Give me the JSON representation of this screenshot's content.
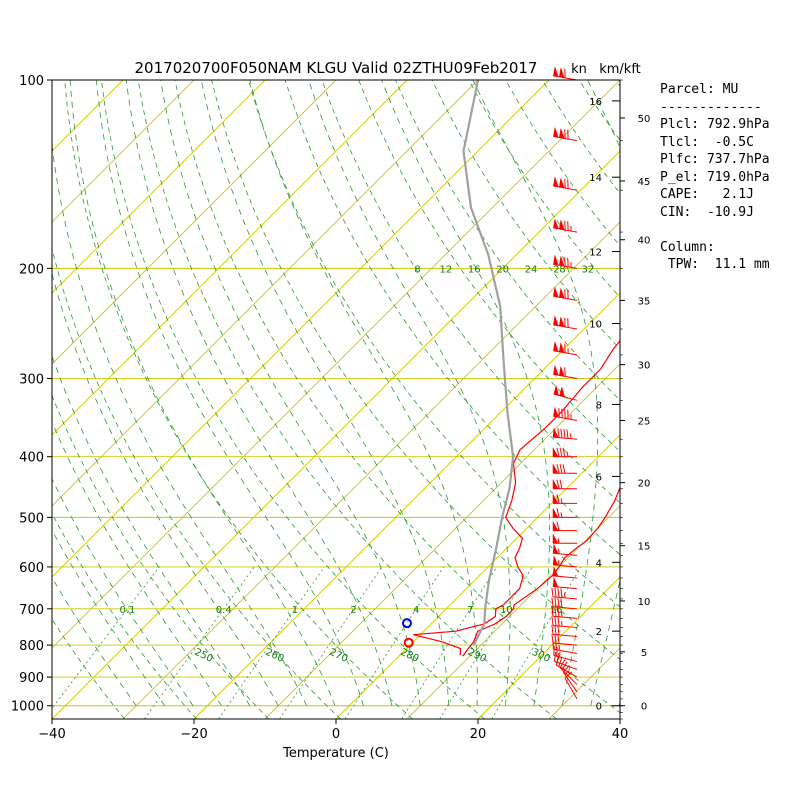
{
  "chart_data": {
    "type": "skew-t",
    "title": "2017020700F050NAM KLGU Valid 02ZTHU09Feb2017",
    "xlabel": "Temperature (C)",
    "xlim": [
      -40,
      40
    ],
    "x_ticks": [
      "−40",
      "−20",
      "0",
      "20",
      "40"
    ],
    "x_tick_values": [
      -40,
      -20,
      0,
      20,
      40
    ],
    "ylim_hpa": [
      1050,
      100
    ],
    "pressure_ticks": [
      100,
      200,
      300,
      400,
      500,
      600,
      700,
      800,
      900,
      1000
    ],
    "wind_units": "kn",
    "height_units": "km/kft",
    "km_ticks": [
      0,
      2,
      4,
      6,
      8,
      10,
      12,
      14,
      16
    ],
    "kft_ticks": [
      0,
      5,
      10,
      15,
      20,
      25,
      30,
      35,
      40,
      45,
      50
    ],
    "km_pressure": [
      {
        "v": 0,
        "p": 1000
      },
      {
        "v": 2,
        "p": 760
      },
      {
        "v": 4,
        "p": 590
      },
      {
        "v": 6,
        "p": 430
      },
      {
        "v": 8,
        "p": 330
      },
      {
        "v": 10,
        "p": 245
      },
      {
        "v": 12,
        "p": 188
      },
      {
        "v": 14,
        "p": 143
      },
      {
        "v": 16,
        "p": 108
      }
    ],
    "kft_pressure": [
      {
        "v": 0,
        "p": 1000
      },
      {
        "v": 5,
        "p": 820
      },
      {
        "v": 10,
        "p": 680
      },
      {
        "v": 15,
        "p": 555
      },
      {
        "v": 20,
        "p": 440
      },
      {
        "v": 25,
        "p": 350
      },
      {
        "v": 30,
        "p": 285
      },
      {
        "v": 35,
        "p": 225
      },
      {
        "v": 40,
        "p": 180
      },
      {
        "v": 45,
        "p": 145
      },
      {
        "v": 50,
        "p": 115
      }
    ],
    "mixing_ratio_labels": [
      "0.1",
      "0.4",
      "1",
      "2",
      "4",
      "7",
      "10",
      "16"
    ],
    "mixing_ratio_values": [
      0.1,
      0.4,
      1,
      2,
      4,
      7,
      10,
      16
    ],
    "mixing_ratio_label_pressure": 700,
    "temperature_labels_200": [
      "8",
      "12",
      "16",
      "20",
      "24",
      "28",
      "32"
    ],
    "temperature_labels_200_values": [
      8,
      12,
      16,
      20,
      24,
      28,
      32
    ],
    "theta_labels": [
      "250",
      "260",
      "270",
      "280",
      "290",
      "300"
    ],
    "theta_label_positions": [
      {
        "t": -28.5,
        "p": 815,
        "v": "250"
      },
      {
        "t": -18.5,
        "p": 815,
        "v": "260"
      },
      {
        "t": -9.5,
        "p": 815,
        "v": "270"
      },
      {
        "t": 0.5,
        "p": 815,
        "v": "280"
      },
      {
        "t": 10,
        "p": 815,
        "v": "290"
      },
      {
        "t": 19,
        "p": 815,
        "v": "300"
      }
    ],
    "series": [
      {
        "kind": "temperature",
        "color": "#ff0000",
        "points": [
          [
            9,
            833
          ],
          [
            8.7,
            810
          ],
          [
            8.5,
            790
          ],
          [
            7.6,
            760
          ],
          [
            9,
            740
          ],
          [
            9.5,
            720
          ],
          [
            9.5,
            700
          ],
          [
            9,
            690
          ],
          [
            10,
            650
          ],
          [
            10.3,
            620
          ],
          [
            10,
            600
          ],
          [
            9.5,
            580
          ],
          [
            9.8,
            560
          ],
          [
            10.2,
            545
          ],
          [
            10,
            520
          ],
          [
            9.5,
            500
          ],
          [
            8.5,
            470
          ],
          [
            7,
            440
          ],
          [
            5,
            400
          ],
          [
            3,
            360
          ],
          [
            1,
            320
          ],
          [
            -1.2,
            285
          ],
          [
            -3.5,
            260
          ],
          [
            -4.8,
            240
          ],
          [
            -5.6,
            220
          ],
          [
            -6.2,
            200
          ],
          [
            -6.3,
            180
          ],
          [
            -5.6,
            165
          ],
          [
            -4,
            150
          ],
          [
            -1.5,
            135
          ],
          [
            0.5,
            125
          ],
          [
            2,
            120
          ],
          [
            7,
            110
          ],
          [
            10,
            102
          ]
        ]
      },
      {
        "kind": "dewpoint",
        "color": "#ff0000",
        "points": [
          [
            8.5,
            830
          ],
          [
            7.6,
            810
          ],
          [
            4,
            790
          ],
          [
            -1,
            770
          ],
          [
            4.5,
            760
          ],
          [
            7.5,
            740
          ],
          [
            8,
            720
          ],
          [
            7,
            700
          ],
          [
            7.5,
            690
          ],
          [
            7.5,
            650
          ],
          [
            6.2,
            620
          ],
          [
            4.2,
            600
          ],
          [
            2.5,
            580
          ],
          [
            1.8,
            560
          ],
          [
            0.8,
            540
          ],
          [
            -2,
            520
          ],
          [
            -4.5,
            500
          ],
          [
            -6,
            470
          ],
          [
            -8,
            440
          ],
          [
            -11,
            410
          ],
          [
            -12,
            390
          ],
          [
            -11.5,
            360
          ],
          [
            -11.5,
            340
          ],
          [
            -12,
            310
          ],
          [
            -12,
            290
          ],
          [
            -13,
            270
          ],
          [
            -13.6,
            250
          ],
          [
            -14,
            235
          ],
          [
            -13.5,
            220
          ],
          [
            -12.5,
            200
          ],
          [
            -11.5,
            180
          ],
          [
            -11,
            165
          ],
          [
            -11.5,
            155
          ],
          [
            -10,
            147
          ],
          [
            -13,
            120
          ],
          [
            -15,
            100
          ]
        ]
      },
      {
        "kind": "parcel",
        "color": "#a0a0a0",
        "points": [
          [
            9,
            800
          ],
          [
            7.5,
            740
          ],
          [
            6.5,
            720
          ],
          [
            5,
            690
          ],
          [
            2,
            630
          ],
          [
            -1.5,
            560
          ],
          [
            -5,
            500
          ],
          [
            -8,
            450
          ],
          [
            -12,
            400
          ],
          [
            -19,
            340
          ],
          [
            -27,
            280
          ],
          [
            -35,
            230
          ],
          [
            -44,
            190
          ],
          [
            -53,
            160
          ],
          [
            -62,
            130
          ],
          [
            -70,
            100
          ]
        ]
      }
    ],
    "lcl_point": {
      "t": -0.5,
      "p": 793
    },
    "lfc_point": {
      "t": -3.5,
      "p": 738
    },
    "wind_barbs": [
      {
        "p": 975,
        "kn": 10,
        "dir": 330
      },
      {
        "p": 950,
        "kn": 15,
        "dir": 325
      },
      {
        "p": 925,
        "kn": 20,
        "dir": 315
      },
      {
        "p": 900,
        "kn": 20,
        "dir": 300
      },
      {
        "p": 875,
        "kn": 20,
        "dir": 290
      },
      {
        "p": 850,
        "kn": 25,
        "dir": 285
      },
      {
        "p": 825,
        "kn": 25,
        "dir": 280
      },
      {
        "p": 800,
        "kn": 30,
        "dir": 275
      },
      {
        "p": 775,
        "kn": 30,
        "dir": 275
      },
      {
        "p": 750,
        "kn": 35,
        "dir": 275
      },
      {
        "p": 725,
        "kn": 35,
        "dir": 275
      },
      {
        "p": 700,
        "kn": 40,
        "dir": 275
      },
      {
        "p": 675,
        "kn": 45,
        "dir": 275
      },
      {
        "p": 650,
        "kn": 50,
        "dir": 275
      },
      {
        "p": 625,
        "kn": 50,
        "dir": 275
      },
      {
        "p": 600,
        "kn": 55,
        "dir": 275
      },
      {
        "p": 575,
        "kn": 55,
        "dir": 275
      },
      {
        "p": 550,
        "kn": 55,
        "dir": 270
      },
      {
        "p": 525,
        "kn": 60,
        "dir": 270
      },
      {
        "p": 500,
        "kn": 65,
        "dir": 270
      },
      {
        "p": 475,
        "kn": 65,
        "dir": 270
      },
      {
        "p": 450,
        "kn": 70,
        "dir": 270
      },
      {
        "p": 425,
        "kn": 80,
        "dir": 270
      },
      {
        "p": 400,
        "kn": 85,
        "dir": 270
      },
      {
        "p": 375,
        "kn": 95,
        "dir": 275
      },
      {
        "p": 350,
        "kn": 95,
        "dir": 280
      },
      {
        "p": 325,
        "kn": 100,
        "dir": 285
      },
      {
        "p": 300,
        "kn": 110,
        "dir": 280
      },
      {
        "p": 275,
        "kn": 115,
        "dir": 280
      },
      {
        "p": 250,
        "kn": 120,
        "dir": 280
      },
      {
        "p": 225,
        "kn": 120,
        "dir": 280
      },
      {
        "p": 200,
        "kn": 125,
        "dir": 280
      },
      {
        "p": 175,
        "kn": 125,
        "dir": 280
      },
      {
        "p": 150,
        "kn": 120,
        "dir": 280
      },
      {
        "p": 125,
        "kn": 120,
        "dir": 280
      },
      {
        "p": 100,
        "kn": 110,
        "dir": 280
      }
    ],
    "colors": {
      "temperature": "#ff0000",
      "dewpoint": "#ff0000",
      "parcel": "#a0a0a0",
      "isobar": "#c8c800",
      "isotherm": "#c8c800",
      "dry_adiabat": "#2e9a2e",
      "moist_adiabat": "#2e9a2e",
      "mixing_ratio": "#2e9a2e",
      "lcl": "#ff0000",
      "lfc": "#0000ff",
      "barb": "#ff0000"
    }
  },
  "info": {
    "lines": [
      "Parcel: MU",
      "-------------",
      "Plcl: 792.9hPa",
      "Tlcl:  -0.5C",
      "Plfc: 737.7hPa",
      "P_el: 719.0hPa",
      "CAPE:   2.1J",
      "CIN:  -10.9J",
      "",
      "Column:",
      " TPW:  11.1 mm"
    ]
  }
}
